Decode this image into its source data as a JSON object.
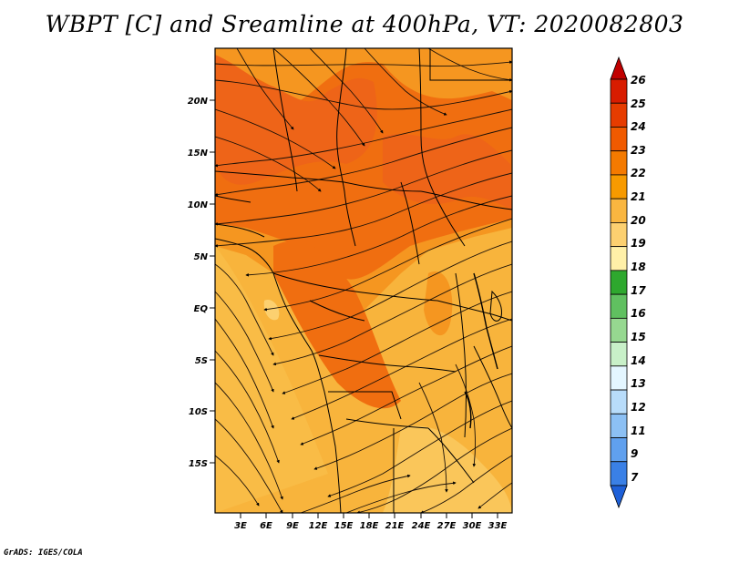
{
  "title": "WBPT [C] and Sreamline at 400hPa, VT: 2020082803",
  "credit": "GrADS: IGES/COLA",
  "map": {
    "lat_labels": [
      "20N",
      "15N",
      "10N",
      "5N",
      "EQ",
      "5S",
      "10S",
      "15S"
    ],
    "lon_labels": [
      "3E",
      "6E",
      "9E",
      "12E",
      "15E",
      "18E",
      "21E",
      "24E",
      "27E",
      "30E",
      "33E"
    ]
  },
  "colorbar": {
    "labels": [
      "26",
      "25",
      "24",
      "23",
      "22",
      "21",
      "20",
      "19",
      "18",
      "17",
      "16",
      "15",
      "14",
      "13",
      "12",
      "11",
      "9",
      "7"
    ],
    "colors": [
      "#c00000",
      "#d81c00",
      "#e63c00",
      "#f05a00",
      "#f47a00",
      "#f79a00",
      "#f9b640",
      "#fcd070",
      "#fff0a8",
      "#2ea82e",
      "#60c060",
      "#96d890",
      "#c8f0c8",
      "#e4f6ff",
      "#b8dcfa",
      "#8cc0f4",
      "#60a0ee",
      "#3a80e6",
      "#1e60d8"
    ]
  }
}
